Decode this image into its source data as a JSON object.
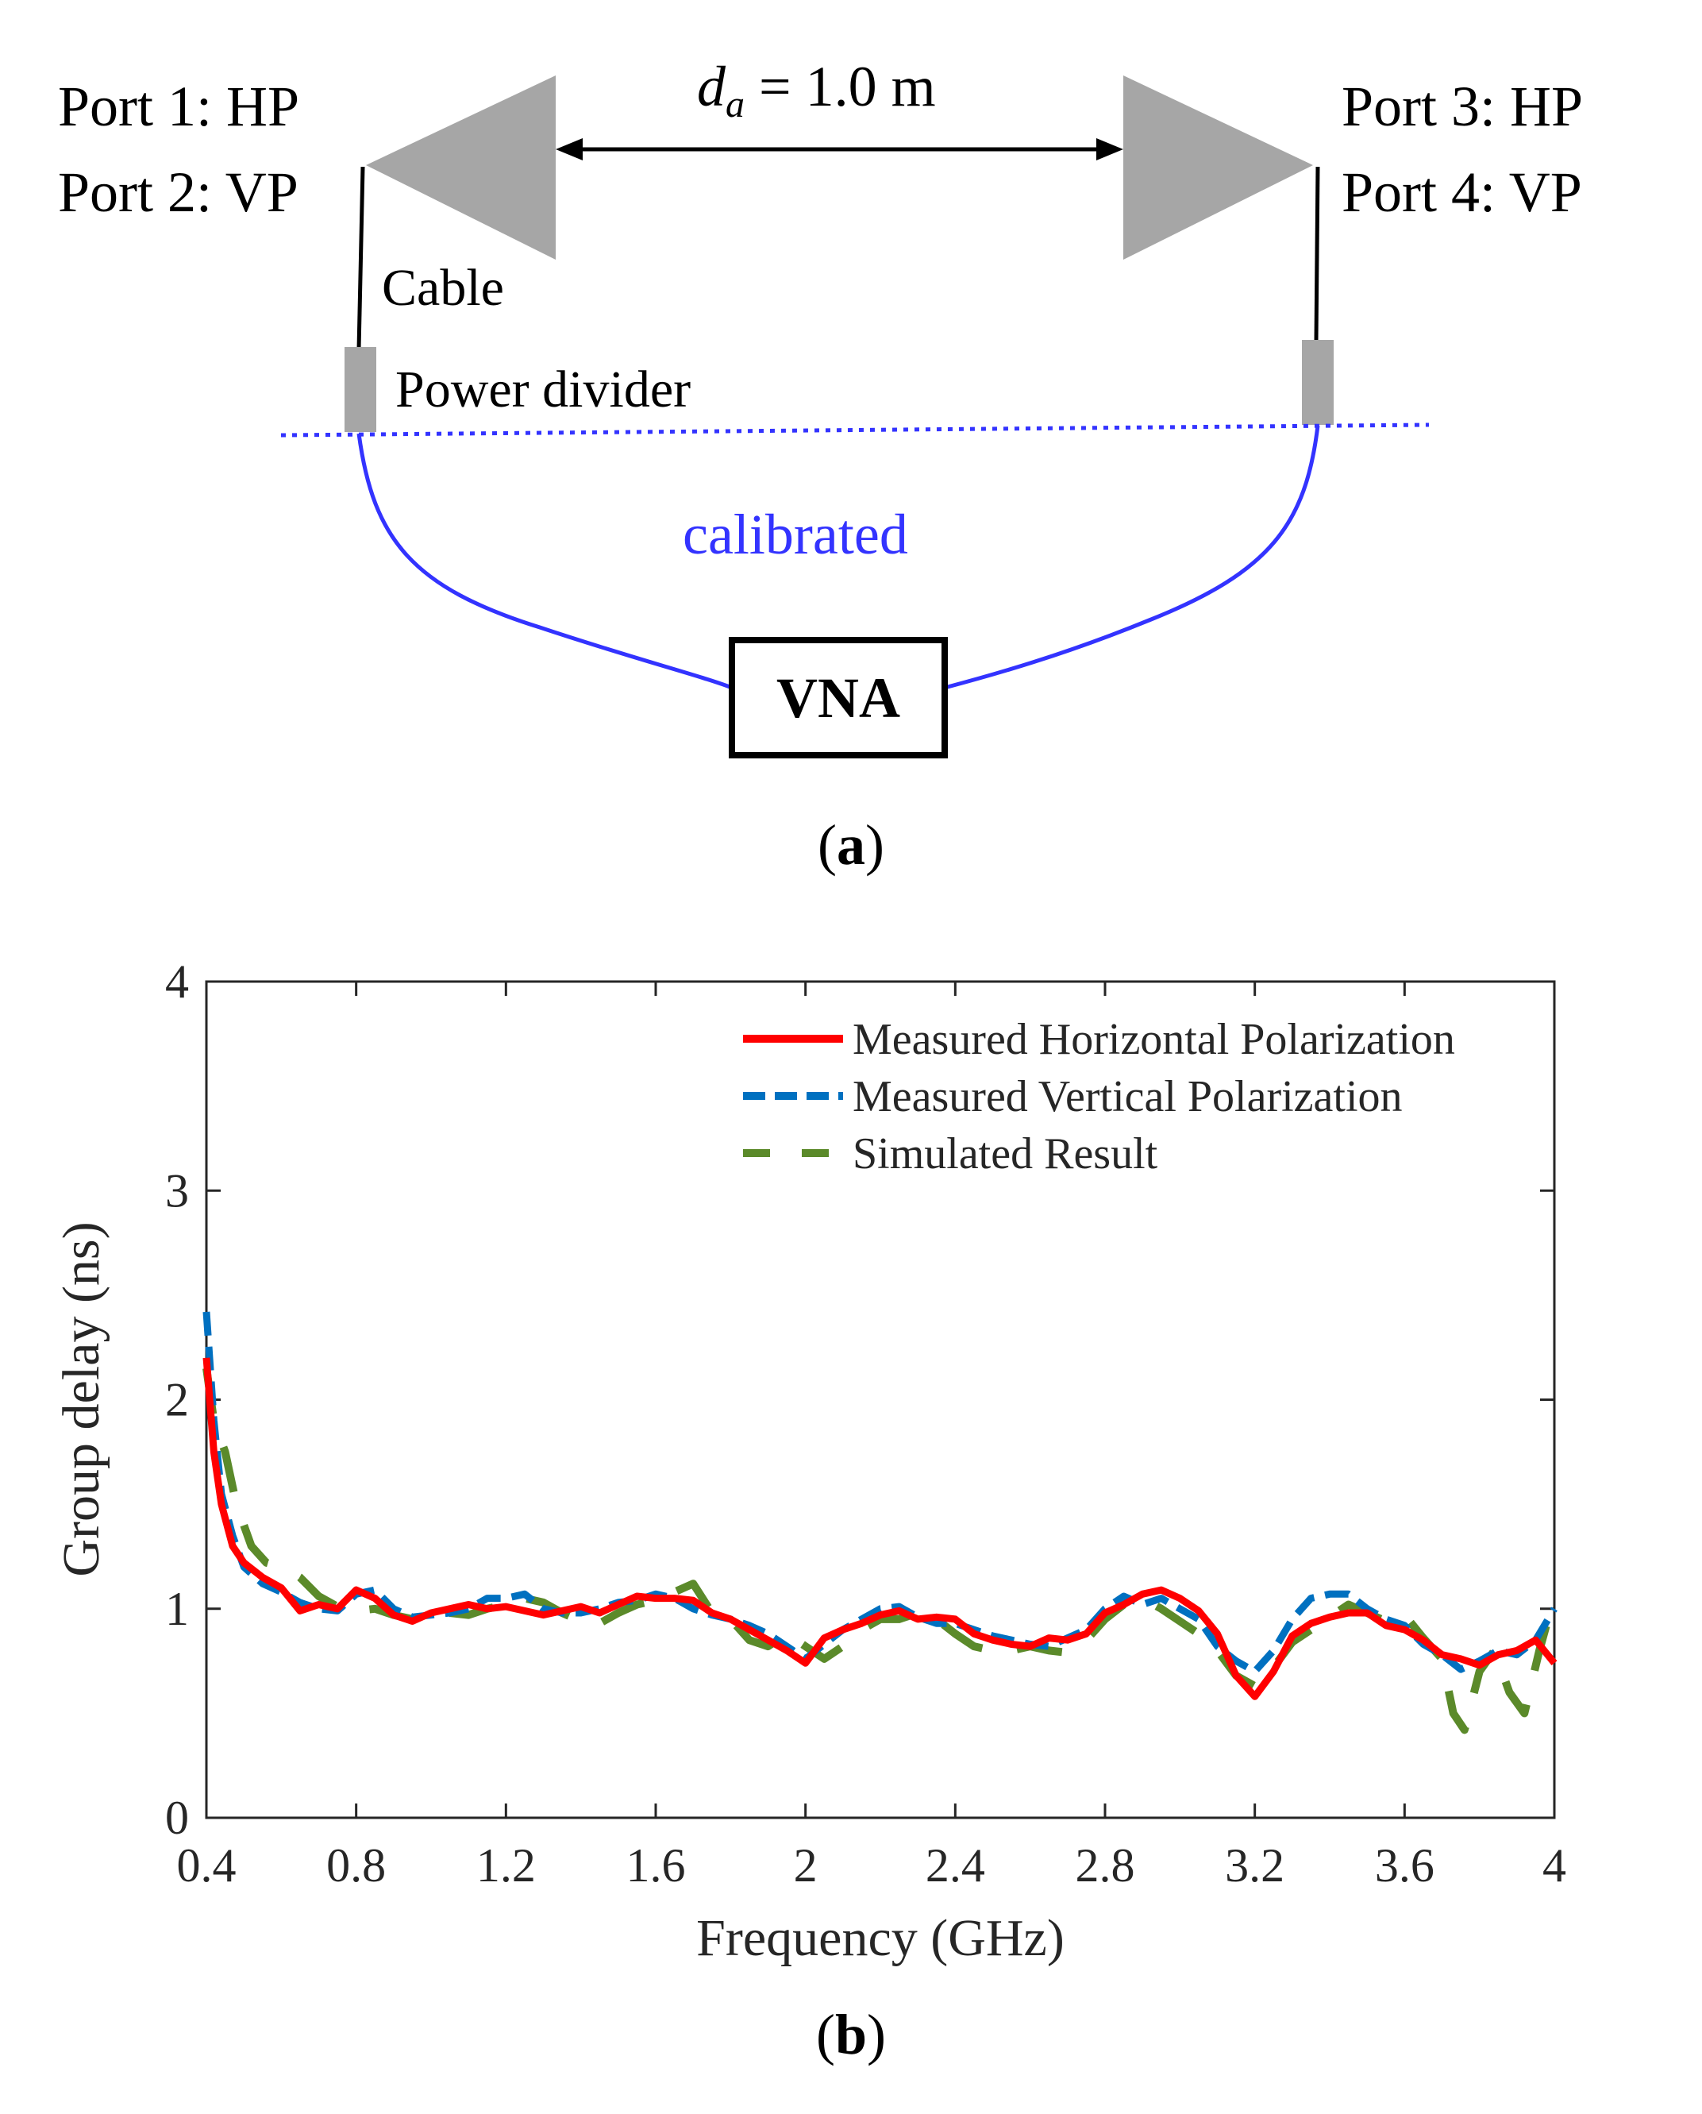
{
  "panel_a": {
    "label": "a",
    "port1": "Port 1: HP",
    "port2": "Port 2: VP",
    "port3": "Port 3: HP",
    "port4": "Port 4: VP",
    "distance_symbol": "d",
    "distance_subscript": "a",
    "distance_value": " = 1.0 m",
    "cable_label": "Cable",
    "power_divider_label": "Power divider",
    "calibrated_label": "calibrated",
    "vna_label": "VNA",
    "colors": {
      "antenna": "#a6a6a6",
      "calibration": "#3333ff",
      "line": "#000000"
    }
  },
  "panel_b": {
    "label": "b"
  },
  "chart_data": {
    "type": "line",
    "title": "",
    "xlabel": "Frequency (GHz)",
    "ylabel": "Group delay (ns)",
    "xlim": [
      0.4,
      4.0
    ],
    "ylim": [
      0,
      4
    ],
    "xticks": [
      0.4,
      0.8,
      1.2,
      1.6,
      2.0,
      2.4,
      2.8,
      3.2,
      3.6,
      4.0
    ],
    "xtick_labels": [
      "0.4",
      "0.8",
      "1.2",
      "1.6",
      "2",
      "2.4",
      "2.8",
      "3.2",
      "3.6",
      "4"
    ],
    "yticks": [
      0,
      1,
      2,
      3,
      4
    ],
    "ytick_labels": [
      "0",
      "1",
      "2",
      "3",
      "4"
    ],
    "grid": false,
    "legend_position": "top-right",
    "series": [
      {
        "name": "Measured Horizontal Polarization",
        "color": "#ff0000",
        "style": "solid",
        "x": [
          0.4,
          0.42,
          0.44,
          0.47,
          0.5,
          0.55,
          0.6,
          0.65,
          0.7,
          0.75,
          0.8,
          0.85,
          0.9,
          0.95,
          1.0,
          1.05,
          1.1,
          1.15,
          1.2,
          1.25,
          1.3,
          1.35,
          1.4,
          1.45,
          1.5,
          1.55,
          1.6,
          1.65,
          1.7,
          1.75,
          1.8,
          1.85,
          1.9,
          1.95,
          2.0,
          2.05,
          2.1,
          2.15,
          2.2,
          2.25,
          2.3,
          2.35,
          2.4,
          2.45,
          2.5,
          2.55,
          2.6,
          2.65,
          2.7,
          2.75,
          2.8,
          2.85,
          2.9,
          2.95,
          3.0,
          3.05,
          3.1,
          3.15,
          3.2,
          3.25,
          3.3,
          3.35,
          3.4,
          3.45,
          3.5,
          3.55,
          3.6,
          3.65,
          3.7,
          3.75,
          3.8,
          3.85,
          3.9,
          3.95,
          4.0
        ],
        "values": [
          2.2,
          1.75,
          1.5,
          1.3,
          1.22,
          1.15,
          1.1,
          0.99,
          1.02,
          1.0,
          1.09,
          1.05,
          0.97,
          0.94,
          0.98,
          1.0,
          1.02,
          1.0,
          1.01,
          0.99,
          0.97,
          0.99,
          1.01,
          0.98,
          1.02,
          1.06,
          1.05,
          1.05,
          1.04,
          0.98,
          0.95,
          0.9,
          0.85,
          0.8,
          0.74,
          0.86,
          0.9,
          0.93,
          0.97,
          0.99,
          0.95,
          0.96,
          0.95,
          0.88,
          0.85,
          0.83,
          0.82,
          0.86,
          0.85,
          0.88,
          0.98,
          1.02,
          1.07,
          1.09,
          1.05,
          0.99,
          0.88,
          0.68,
          0.58,
          0.7,
          0.87,
          0.93,
          0.96,
          0.98,
          0.98,
          0.92,
          0.9,
          0.85,
          0.78,
          0.76,
          0.73,
          0.78,
          0.8,
          0.85,
          0.74
        ]
      },
      {
        "name": "Measured Vertical Polarization",
        "color": "#0070c0",
        "style": "dashed",
        "x": [
          0.4,
          0.42,
          0.44,
          0.47,
          0.5,
          0.55,
          0.6,
          0.65,
          0.7,
          0.75,
          0.8,
          0.85,
          0.9,
          0.95,
          1.0,
          1.05,
          1.1,
          1.15,
          1.2,
          1.25,
          1.3,
          1.35,
          1.4,
          1.45,
          1.5,
          1.55,
          1.6,
          1.65,
          1.7,
          1.75,
          1.8,
          1.85,
          1.9,
          1.95,
          2.0,
          2.05,
          2.1,
          2.15,
          2.2,
          2.25,
          2.3,
          2.35,
          2.4,
          2.45,
          2.5,
          2.55,
          2.6,
          2.65,
          2.7,
          2.75,
          2.8,
          2.85,
          2.9,
          2.95,
          3.0,
          3.05,
          3.1,
          3.15,
          3.2,
          3.25,
          3.3,
          3.35,
          3.4,
          3.45,
          3.5,
          3.55,
          3.6,
          3.65,
          3.7,
          3.75,
          3.8,
          3.85,
          3.9,
          3.95,
          4.0
        ],
        "values": [
          2.42,
          1.9,
          1.55,
          1.35,
          1.2,
          1.12,
          1.08,
          1.03,
          1.0,
          0.99,
          1.07,
          1.09,
          1.0,
          0.96,
          0.97,
          0.98,
          1.0,
          1.05,
          1.05,
          1.07,
          1.0,
          0.98,
          0.98,
          1.0,
          1.03,
          1.04,
          1.07,
          1.05,
          1.0,
          0.97,
          0.95,
          0.92,
          0.88,
          0.82,
          0.76,
          0.83,
          0.9,
          0.95,
          1.0,
          1.01,
          0.96,
          0.93,
          0.93,
          0.9,
          0.87,
          0.85,
          0.83,
          0.82,
          0.86,
          0.9,
          1.0,
          1.06,
          1.02,
          1.05,
          1.0,
          0.95,
          0.82,
          0.75,
          0.7,
          0.8,
          0.95,
          1.05,
          1.07,
          1.07,
          1.0,
          0.95,
          0.92,
          0.83,
          0.78,
          0.71,
          0.75,
          0.8,
          0.78,
          0.85,
          1.0
        ]
      },
      {
        "name": "Simulated Result",
        "color": "#5b8a2a",
        "style": "long-dash",
        "x": [
          0.4,
          0.42,
          0.45,
          0.48,
          0.52,
          0.56,
          0.6,
          0.65,
          0.7,
          0.75,
          0.8,
          0.85,
          0.9,
          0.95,
          1.0,
          1.05,
          1.1,
          1.15,
          1.2,
          1.25,
          1.3,
          1.35,
          1.4,
          1.45,
          1.5,
          1.55,
          1.6,
          1.65,
          1.7,
          1.75,
          1.8,
          1.85,
          1.9,
          1.95,
          2.0,
          2.05,
          2.1,
          2.15,
          2.2,
          2.25,
          2.3,
          2.35,
          2.4,
          2.45,
          2.5,
          2.55,
          2.6,
          2.65,
          2.7,
          2.75,
          2.8,
          2.85,
          2.9,
          2.95,
          3.0,
          3.05,
          3.1,
          3.15,
          3.2,
          3.25,
          3.3,
          3.35,
          3.4,
          3.45,
          3.5,
          3.55,
          3.6,
          3.65,
          3.7,
          3.73,
          3.76,
          3.8,
          3.84,
          3.88,
          3.92,
          3.96,
          4.0
        ],
        "values": [
          2.15,
          1.9,
          1.75,
          1.5,
          1.3,
          1.22,
          1.2,
          1.15,
          1.06,
          1.01,
          0.99,
          1.0,
          0.97,
          0.95,
          0.96,
          0.98,
          0.97,
          1.0,
          1.02,
          1.05,
          1.03,
          0.98,
          0.94,
          0.93,
          0.98,
          1.02,
          1.04,
          1.08,
          1.12,
          0.98,
          0.95,
          0.85,
          0.82,
          0.88,
          0.82,
          0.76,
          0.82,
          0.9,
          0.95,
          0.95,
          0.98,
          0.95,
          0.88,
          0.82,
          0.8,
          0.8,
          0.82,
          0.8,
          0.79,
          0.85,
          0.95,
          1.02,
          1.05,
          1.0,
          0.94,
          0.88,
          0.8,
          0.68,
          0.63,
          0.72,
          0.84,
          0.9,
          0.96,
          1.02,
          0.98,
          0.94,
          0.97,
          0.86,
          0.76,
          0.5,
          0.42,
          0.7,
          0.8,
          0.6,
          0.5,
          0.8,
          1.06
        ]
      }
    ]
  }
}
